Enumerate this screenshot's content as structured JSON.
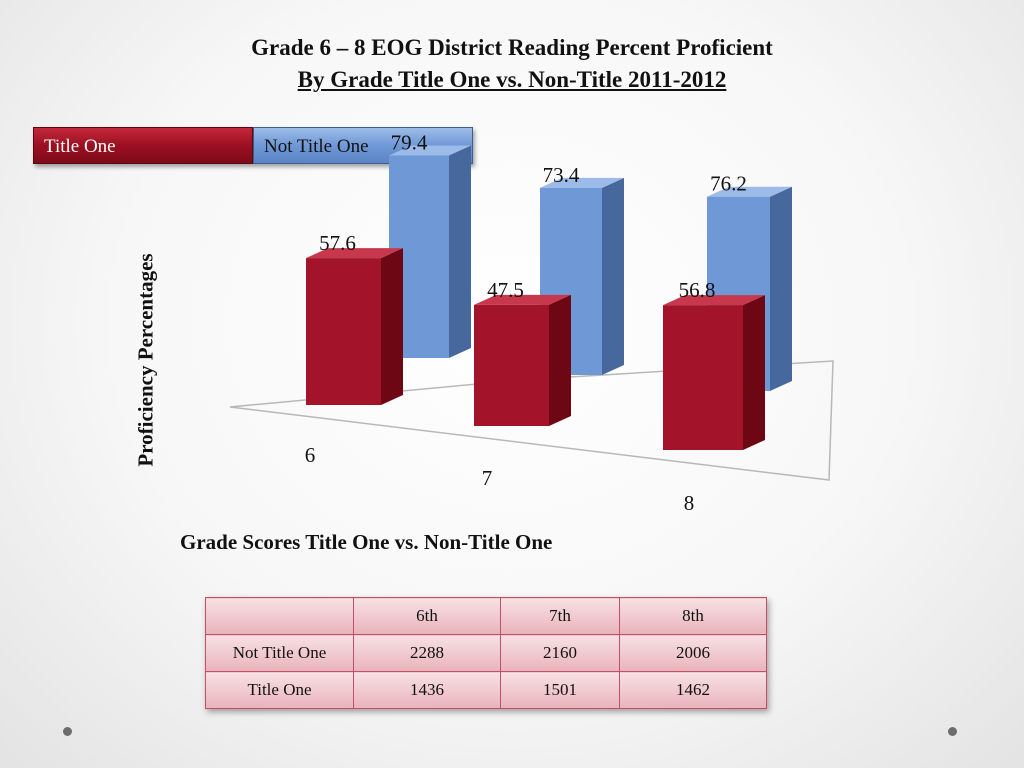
{
  "title_line1": "Grade 6 – 8 EOG District Reading Percent Proficient",
  "title_line2": "By Grade Title One vs. Non-Title 2011-2012",
  "legend": [
    {
      "label": "Title One",
      "color": "#9b1021"
    },
    {
      "label": "Not Title One",
      "color": "#6f98d6"
    }
  ],
  "chart_data": {
    "type": "bar",
    "categories": [
      "6",
      "7",
      "8"
    ],
    "series": [
      {
        "name": "Title One",
        "values": [
          57.6,
          47.5,
          56.8
        ]
      },
      {
        "name": "Not Title One",
        "values": [
          79.4,
          73.4,
          76.2
        ]
      }
    ],
    "xlabel": "Grade Scores Title One vs. Non-Title One",
    "ylabel": "Proficiency Percentages",
    "style": "3d-bar",
    "grid": false
  },
  "table": {
    "header": [
      "",
      "6th",
      "7th",
      "8th"
    ],
    "rows": [
      [
        "Not Title One",
        "2288",
        "2160",
        "2006"
      ],
      [
        "Title One",
        "1436",
        "1501",
        "1462"
      ]
    ]
  }
}
